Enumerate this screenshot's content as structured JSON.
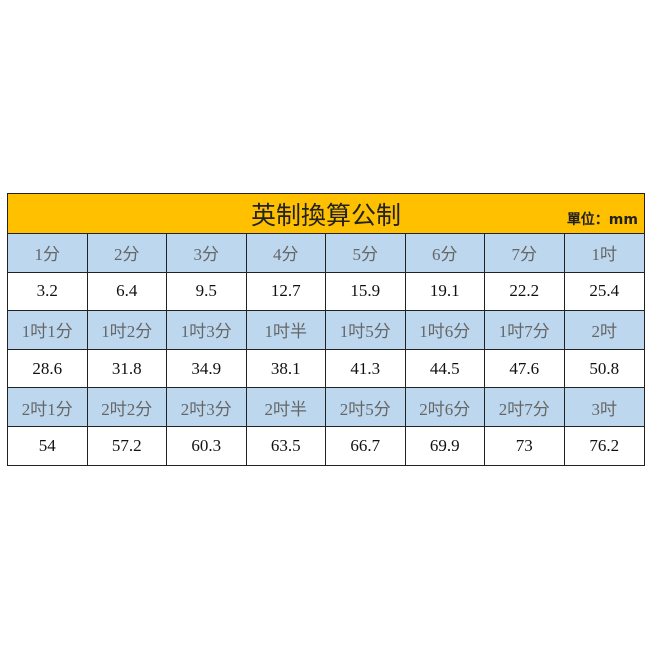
{
  "title": "英制換算公制",
  "unit": "單位：mm",
  "colors": {
    "title_bg": "#FFC000",
    "header_bg": "#BDD7EE"
  },
  "rows": [
    {
      "type": "header",
      "cells": [
        "1分",
        "2分",
        "3分",
        "4分",
        "5分",
        "6分",
        "7分",
        "1吋"
      ]
    },
    {
      "type": "value",
      "cells": [
        "3.2",
        "6.4",
        "9.5",
        "12.7",
        "15.9",
        "19.1",
        "22.2",
        "25.4"
      ]
    },
    {
      "type": "header",
      "cells": [
        "1吋1分",
        "1吋2分",
        "1吋3分",
        "1吋半",
        "1吋5分",
        "1吋6分",
        "1吋7分",
        "2吋"
      ]
    },
    {
      "type": "value",
      "cells": [
        "28.6",
        "31.8",
        "34.9",
        "38.1",
        "41.3",
        "44.5",
        "47.6",
        "50.8"
      ]
    },
    {
      "type": "header",
      "cells": [
        "2吋1分",
        "2吋2分",
        "2吋3分",
        "2吋半",
        "2吋5分",
        "2吋6分",
        "2吋7分",
        "3吋"
      ]
    },
    {
      "type": "value",
      "cells": [
        "54",
        "57.2",
        "60.3",
        "63.5",
        "66.7",
        "69.9",
        "73",
        "76.2"
      ]
    }
  ]
}
